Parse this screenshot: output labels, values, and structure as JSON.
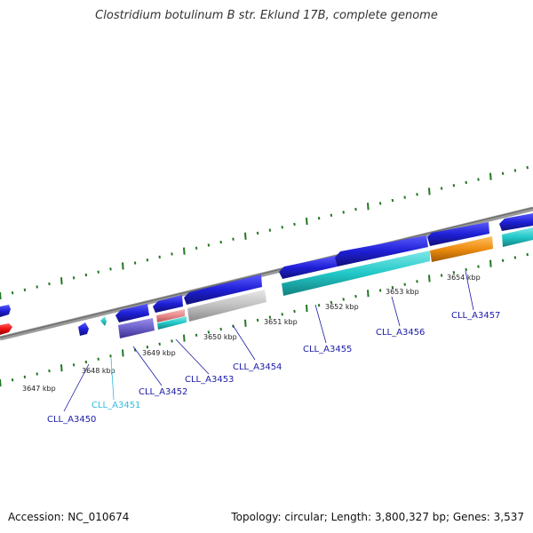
{
  "title": "Clostridium botulinum B str. Eklund 17B, complete genome",
  "footer": {
    "accession": "Accession: NC_010674",
    "summary": "Topology: circular; Length: 3,800,327 bp; Genes: 3,537"
  },
  "ticks": [
    "3647 kbp",
    "3648 kbp",
    "3649 kbp",
    "3650 kbp",
    "3651 kbp",
    "3652 kbp",
    "3653 kbp",
    "3654 kbp"
  ],
  "genes": [
    {
      "label": "CLL_A3450",
      "color": "#1a1aa8"
    },
    {
      "label": "CLL_A3451",
      "color": "#33bbdd"
    },
    {
      "label": "CLL_A3452",
      "color": "#1a1aa8"
    },
    {
      "label": "CLL_A3453",
      "color": "#1a1aa8"
    },
    {
      "label": "CLL_A3454",
      "color": "#1a1aa8"
    },
    {
      "label": "CLL_A3455",
      "color": "#1a1aa8"
    },
    {
      "label": "CLL_A3456",
      "color": "#1a1aa8"
    },
    {
      "label": "CLL_A3457",
      "color": "#1a1aa8"
    }
  ],
  "colors": {
    "cds": "#1f1fd6",
    "rna": "#22c8c8",
    "pseudo": "#c0c0c0",
    "cog_purple": "#6b5fc8",
    "cog_orange": "#ee8c10",
    "cog_pink": "#e88a8a",
    "rrna_red": "#ee1010",
    "backbone": "#808080",
    "tick": "#227722"
  }
}
